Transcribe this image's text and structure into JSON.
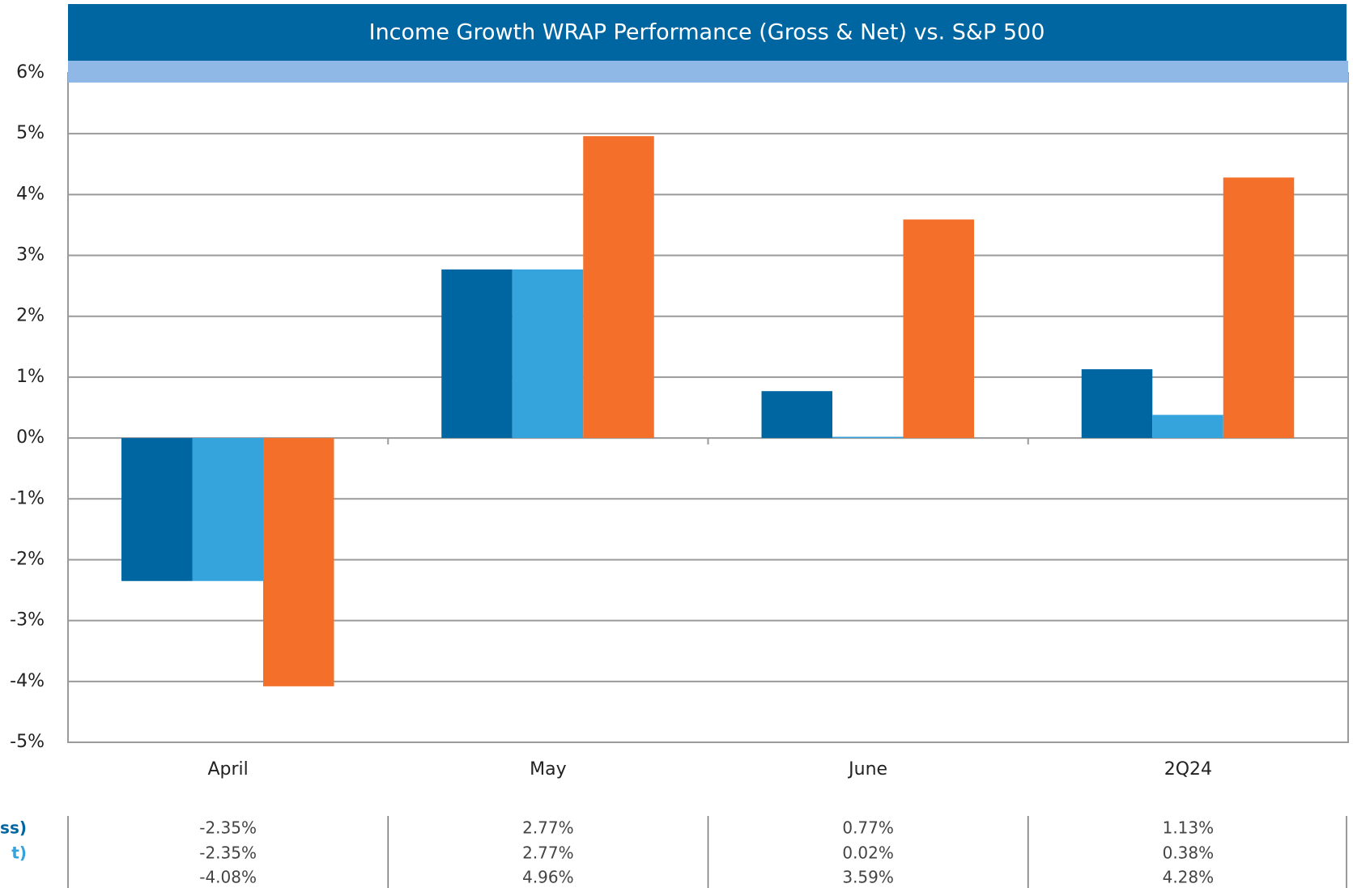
{
  "chart_data": {
    "type": "bar",
    "title": "Income Growth WRAP Performance (Gross & Net) vs. S&P 500",
    "categories": [
      "April",
      "May",
      "June",
      "2Q24"
    ],
    "series": [
      {
        "name": "oss)",
        "color": "#0066a1",
        "values": [
          -2.35,
          2.77,
          0.77,
          1.13
        ],
        "value_labels": [
          "-2.35%",
          "2.77%",
          "0.77%",
          "1.13%"
        ]
      },
      {
        "name": "t)",
        "color": "#35a3dc",
        "values": [
          -2.35,
          2.77,
          0.02,
          0.38
        ],
        "value_labels": [
          "-2.35%",
          "2.77%",
          "0.02%",
          "0.38%"
        ]
      },
      {
        "color": "#f4702a",
        "values": [
          -4.08,
          4.96,
          3.59,
          4.28
        ],
        "value_labels": [
          "-4.08%",
          "4.96%",
          "3.59%",
          "4.28%"
        ]
      }
    ],
    "ylim": [
      -5,
      6
    ],
    "yticks": [
      {
        "value": -5,
        "label": "-5%"
      },
      {
        "value": -4,
        "label": "-4%"
      },
      {
        "value": -3,
        "label": "-3%"
      },
      {
        "value": -2,
        "label": "-2%"
      },
      {
        "value": -1,
        "label": "-1%"
      },
      {
        "value": 0,
        "label": "0%"
      },
      {
        "value": 1,
        "label": "1%"
      },
      {
        "value": 2,
        "label": "2%"
      },
      {
        "value": 3,
        "label": "3%"
      },
      {
        "value": 4,
        "label": "4%"
      },
      {
        "value": 5,
        "label": "5%"
      },
      {
        "value": 6,
        "label": "6%"
      }
    ],
    "grid": true
  }
}
